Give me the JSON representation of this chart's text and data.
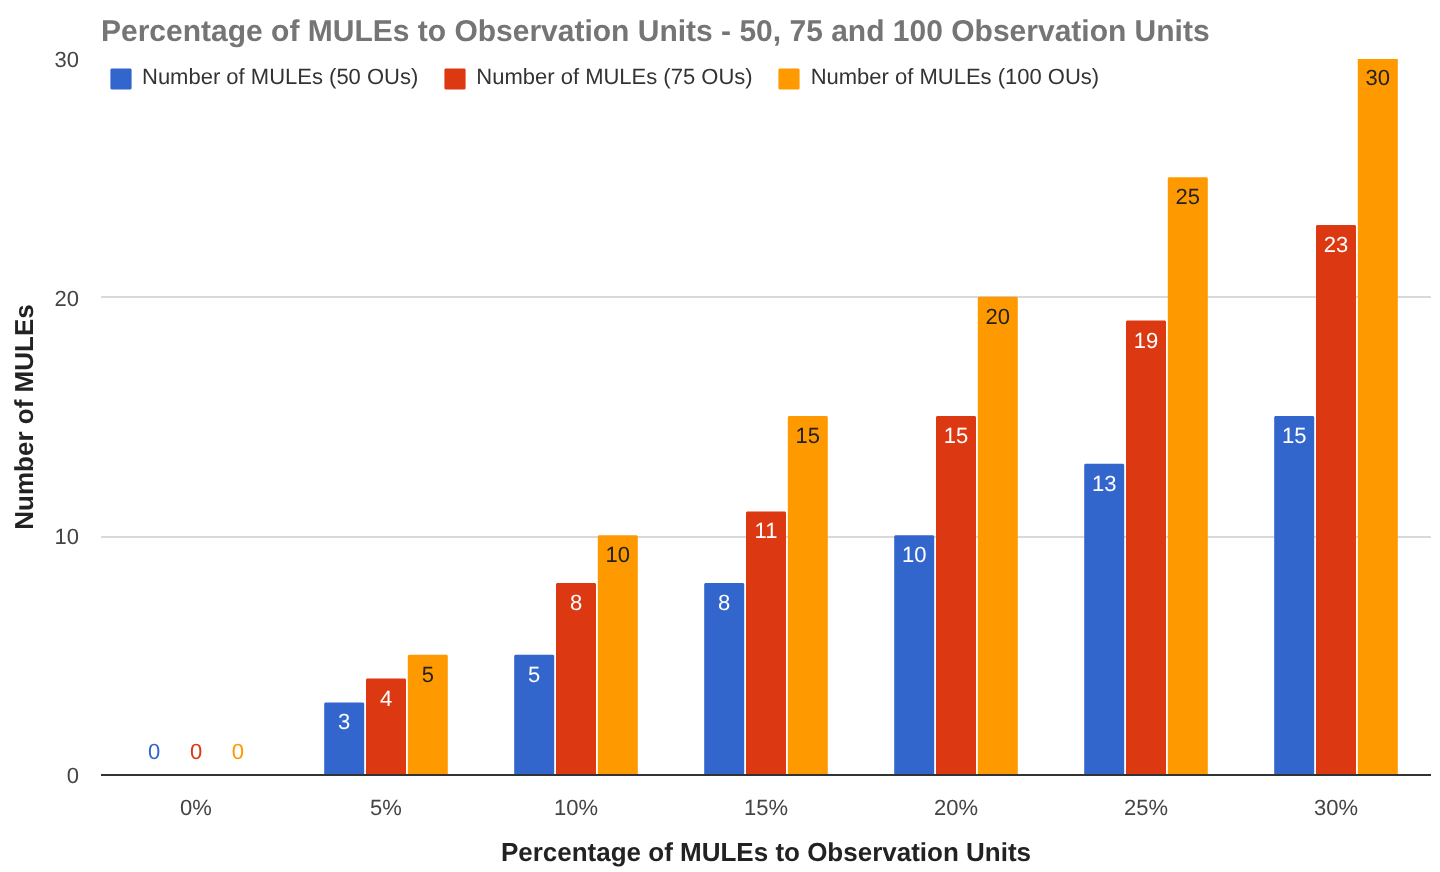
{
  "chart_data": {
    "type": "bar",
    "title": "Percentage of MULEs to Observation Units - 50, 75 and 100 Observation Units",
    "xlabel": "Percentage of MULEs to Observation Units",
    "ylabel": "Number of MULEs",
    "categories": [
      "0%",
      "5%",
      "10%",
      "15%",
      "20%",
      "25%",
      "30%"
    ],
    "series": [
      {
        "name": "Number of MULEs (50 OUs)",
        "color": "#3366cc",
        "values": [
          0,
          3,
          5,
          8,
          10,
          13,
          15
        ]
      },
      {
        "name": "Number of MULEs (75 OUs)",
        "color": "#dc3912",
        "values": [
          0,
          4,
          8,
          11,
          15,
          19,
          23
        ]
      },
      {
        "name": "Number of MULEs (100 OUs)",
        "color": "#ff9900",
        "values": [
          0,
          5,
          10,
          15,
          20,
          25,
          30
        ]
      }
    ],
    "ylim": [
      0,
      30
    ],
    "yticks": [
      0,
      10,
      20,
      30
    ],
    "grid": "y",
    "legend": "top",
    "data_labels": true
  }
}
